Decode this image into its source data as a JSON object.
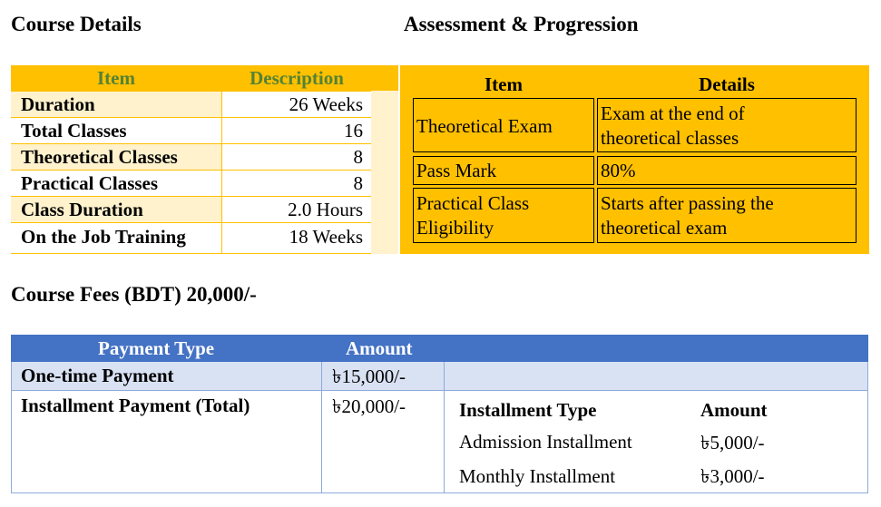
{
  "course_details": {
    "heading": "Course Details",
    "col_item": "Item",
    "col_description": "Description",
    "rows": [
      {
        "item": "Duration",
        "description": "26 Weeks"
      },
      {
        "item": "Total Classes",
        "description": "16"
      },
      {
        "item": "Theoretical Classes",
        "description": "8"
      },
      {
        "item": "Practical Classes",
        "description": "8"
      },
      {
        "item": "Class Duration",
        "description": "2.0 Hours"
      },
      {
        "item": "On the Job Training",
        "description": "18 Weeks"
      }
    ]
  },
  "assessment": {
    "heading": "Assessment & Progression",
    "col_item": "Item",
    "col_details": "Details",
    "rows": [
      {
        "item": "Theoretical Exam",
        "details_line1": "Exam at the end of",
        "details_line2": "theoretical classes"
      },
      {
        "item": "Pass Mark",
        "details_line1": "80%"
      },
      {
        "item_line1": "Practical Class",
        "item_line2": "Eligibility",
        "details_line1": "Starts after passing the",
        "details_line2": "theoretical exam"
      }
    ]
  },
  "fees": {
    "heading": "Course Fees (BDT) 20,000/-",
    "col_payment_type": "Payment Type",
    "col_amount": "Amount",
    "one_time": {
      "type": "One-time Payment",
      "amount": "৳15,000/-"
    },
    "installment": {
      "type": "Installment Payment (Total)",
      "amount": "৳20,000/-"
    },
    "installment_breakdown": {
      "col_type": "Installment Type",
      "col_amount": "Amount",
      "rows": [
        {
          "type": "Admission Installment",
          "amount": "৳5,000/-"
        },
        {
          "type": "Monthly Installment",
          "amount": "৳3,000/-"
        }
      ]
    }
  },
  "colors": {
    "gold": "#FFC000",
    "light_gold": "#FFF2CC",
    "green_header": "#548235",
    "blue_header": "#4472C4",
    "light_blue": "#D9E2F3"
  }
}
